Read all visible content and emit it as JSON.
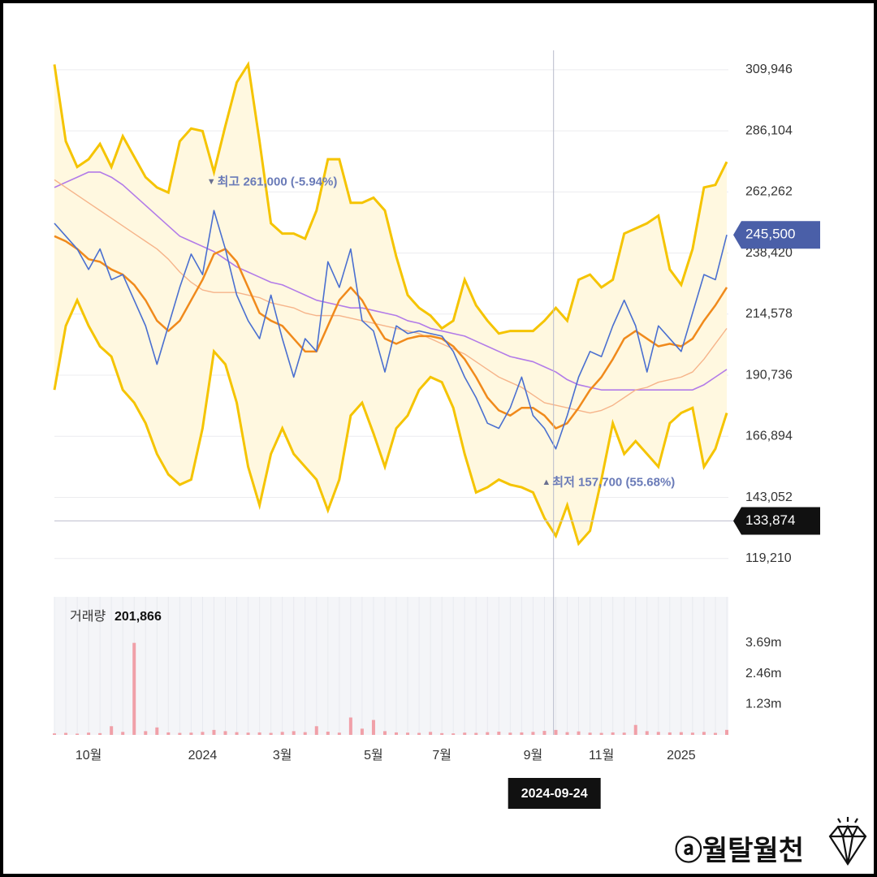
{
  "chart_data": {
    "type": "line",
    "categories": [
      null,
      null,
      null,
      "10월",
      null,
      null,
      null,
      null,
      null,
      null,
      null,
      null,
      null,
      "2024",
      null,
      null,
      null,
      null,
      null,
      null,
      "3월",
      null,
      null,
      null,
      null,
      null,
      null,
      null,
      "5월",
      null,
      null,
      null,
      null,
      null,
      "7월",
      null,
      null,
      null,
      null,
      null,
      null,
      null,
      "9월",
      null,
      null,
      null,
      null,
      null,
      "11월",
      null,
      null,
      null,
      null,
      null,
      null,
      "2025",
      null,
      null,
      null,
      null
    ],
    "series": [
      {
        "color": "#4a6fd0",
        "width": 1.6,
        "values": [
          250000,
          245000,
          240000,
          232000,
          240000,
          228000,
          230000,
          220000,
          210000,
          195000,
          210000,
          225000,
          238000,
          230000,
          255000,
          240000,
          222000,
          212000,
          205000,
          222000,
          205000,
          190000,
          205000,
          200000,
          235000,
          225000,
          240000,
          212000,
          208000,
          192000,
          210000,
          207000,
          208000,
          207000,
          206000,
          200000,
          190000,
          182000,
          172000,
          170000,
          178000,
          190000,
          175000,
          170000,
          162000,
          175000,
          190000,
          200000,
          198000,
          210000,
          220000,
          210000,
          192000,
          210000,
          205000,
          200000,
          215000,
          230000,
          228000,
          245500
        ]
      },
      {
        "color": "#f08a1c",
        "width": 2.5,
        "values": [
          245000,
          243000,
          240000,
          236000,
          235000,
          232000,
          230000,
          226000,
          220000,
          212000,
          208000,
          212000,
          220000,
          228000,
          238000,
          240000,
          235000,
          225000,
          215000,
          212000,
          210000,
          205000,
          200000,
          200000,
          210000,
          220000,
          225000,
          220000,
          212000,
          205000,
          203000,
          205000,
          206000,
          206000,
          205000,
          202000,
          197000,
          190000,
          182000,
          177000,
          175000,
          178000,
          178000,
          175000,
          170000,
          172000,
          178000,
          185000,
          190000,
          197000,
          205000,
          208000,
          205000,
          202000,
          203000,
          202000,
          205000,
          212000,
          218000,
          225000
        ]
      },
      {
        "color": "#f6b48a",
        "width": 1.4,
        "values": [
          267000,
          264000,
          261000,
          258000,
          255000,
          252000,
          249000,
          246000,
          243000,
          240000,
          236000,
          231000,
          227000,
          224000,
          223000,
          223000,
          223000,
          222000,
          221000,
          219000,
          218000,
          217000,
          215000,
          214000,
          214000,
          214000,
          213000,
          212000,
          211000,
          210000,
          209000,
          208000,
          207000,
          205000,
          203000,
          201000,
          199000,
          196000,
          193000,
          190000,
          188000,
          186000,
          183000,
          180000,
          179000,
          178000,
          177000,
          176000,
          177000,
          179000,
          182000,
          185000,
          186000,
          188000,
          189000,
          190000,
          192000,
          197000,
          203000,
          209000
        ]
      },
      {
        "color": "#b27be8",
        "width": 1.6,
        "values": [
          264000,
          266000,
          268000,
          270000,
          270000,
          268000,
          265000,
          261000,
          257000,
          253000,
          249000,
          245000,
          243000,
          241000,
          239000,
          236000,
          233000,
          231000,
          229000,
          227000,
          226000,
          224000,
          222000,
          220000,
          219000,
          218000,
          217000,
          217000,
          216000,
          215000,
          214000,
          212000,
          211000,
          209000,
          208000,
          207000,
          206000,
          204000,
          202000,
          200000,
          198000,
          197000,
          196000,
          194000,
          192000,
          189000,
          187000,
          186000,
          185000,
          185000,
          185000,
          185000,
          185000,
          185000,
          185000,
          185000,
          185000,
          187000,
          190000,
          193000
        ]
      }
    ],
    "bands": {
      "color": "#f5c400",
      "fill": "#fff8e0",
      "upper": [
        312000,
        282000,
        272000,
        275000,
        281000,
        272000,
        284000,
        276000,
        268000,
        264000,
        262000,
        282000,
        287000,
        286000,
        270000,
        288000,
        305000,
        312000,
        282000,
        250000,
        246000,
        246000,
        244000,
        255000,
        275000,
        275000,
        258000,
        258000,
        260000,
        255000,
        237000,
        222000,
        217000,
        214000,
        209000,
        212000,
        228000,
        218000,
        212000,
        207000,
        208000,
        208000,
        208000,
        212000,
        217000,
        212000,
        228000,
        230000,
        225000,
        228000,
        246000,
        248000,
        250000,
        253000,
        232000,
        226000,
        240000,
        264000,
        265000,
        274000
      ],
      "lower": [
        185000,
        210000,
        220000,
        210000,
        202000,
        198000,
        185000,
        180000,
        172000,
        160000,
        152000,
        148000,
        150000,
        170000,
        200000,
        195000,
        180000,
        155000,
        140000,
        160000,
        170000,
        160000,
        155000,
        150000,
        138000,
        150000,
        175000,
        180000,
        168000,
        155000,
        170000,
        175000,
        185000,
        190000,
        188000,
        178000,
        160000,
        145000,
        147000,
        150000,
        148000,
        147000,
        145000,
        135000,
        128000,
        140000,
        125000,
        130000,
        150000,
        172000,
        160000,
        165000,
        160000,
        155000,
        172000,
        176000,
        178000,
        155000,
        162000,
        176000
      ]
    },
    "ylim": [
      109000,
      317500
    ],
    "yticks": [
      {
        "value": 119210,
        "label": "119,210"
      },
      {
        "value": 143052,
        "label": "143,052"
      },
      {
        "value": 166894,
        "label": "166,894"
      },
      {
        "value": 190736,
        "label": "190,736"
      },
      {
        "value": 214578,
        "label": "214,578"
      },
      {
        "value": 238420,
        "label": "238,420"
      },
      {
        "value": 262262,
        "label": "262,262"
      },
      {
        "value": 286104,
        "label": "286,104"
      },
      {
        "value": 309946,
        "label": "309,946"
      }
    ],
    "grid": true,
    "markers": [
      {
        "value": 245500,
        "label": "245,500",
        "color": "#4a5fa8"
      },
      {
        "value": 133874,
        "label": "133,874",
        "color": "#111111"
      }
    ],
    "annotations": [
      {
        "label": "최고 261,000 (-5.94%)",
        "value": 261000
      },
      {
        "label": "최저 157,700 (55.68%)",
        "value": 157700
      }
    ],
    "crosshair": {
      "label": "2024-09-24"
    },
    "volume": {
      "title": "거래량",
      "last_label": "201,866",
      "color": "#f0a0a8",
      "values": [
        60000,
        80000,
        50000,
        90000,
        70000,
        350000,
        120000,
        3700000,
        150000,
        300000,
        100000,
        80000,
        90000,
        120000,
        200000,
        150000,
        110000,
        90000,
        100000,
        80000,
        120000,
        150000,
        110000,
        350000,
        130000,
        90000,
        700000,
        250000,
        600000,
        150000,
        100000,
        90000,
        80000,
        120000,
        70000,
        60000,
        90000,
        80000,
        110000,
        130000,
        90000,
        100000,
        120000,
        160000,
        200000,
        110000,
        140000,
        90000,
        80000,
        100000,
        90000,
        400000,
        150000,
        120000,
        100000,
        110000,
        90000,
        120000,
        80000,
        201866
      ],
      "ylim": [
        0,
        5550000
      ],
      "yticks": [
        {
          "value": 1230000,
          "label": "1.23m"
        },
        {
          "value": 2460000,
          "label": "2.46m"
        },
        {
          "value": 3690000,
          "label": "3.69m"
        }
      ]
    },
    "watermark": "ⓐ월탈월천"
  }
}
